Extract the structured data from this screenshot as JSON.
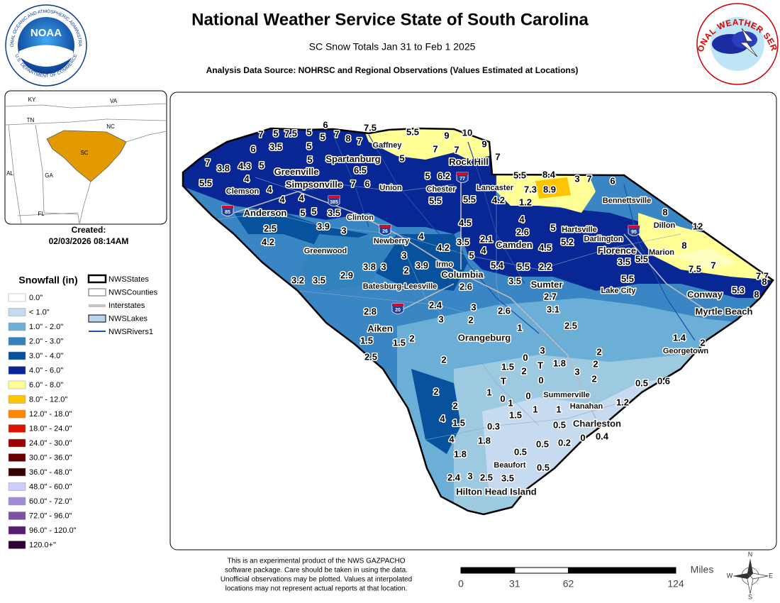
{
  "header": {
    "title": "National Weather Service State of South Carolina",
    "subtitle": "SC Snow Totals Jan 31 to Feb 1 2025",
    "source": "Analysis Data Source: NOHRSC and Regional Observations (Values Estimated at Locations)"
  },
  "logos": {
    "noaa": {
      "name": "NOAA",
      "ring_top": "NATIONAL OCEANIC AND ATMOSPHERIC ADMINISTRATION",
      "ring_bottom": "U.S. DEPARTMENT OF COMMERCE"
    },
    "nws": {
      "ring": "NATIONAL WEATHER SERVICE"
    }
  },
  "inset": {
    "labels": [
      "KY",
      "VA",
      "TN",
      "NC",
      "SC",
      "AL",
      "GA",
      "FL"
    ]
  },
  "created": {
    "label": "Created:",
    "date": "02/03/2026 08:14AM"
  },
  "legend": {
    "title": "Snowfall (in)",
    "items": [
      {
        "label": "0.0\"",
        "color": "#ffffff"
      },
      {
        "label": "< 1.0\"",
        "color": "#c6dbef"
      },
      {
        "label": "1.0\" - 2.0\"",
        "color": "#6baed6"
      },
      {
        "label": "2.0\" - 3.0\"",
        "color": "#3182bd"
      },
      {
        "label": "3.0\" - 4.0\"",
        "color": "#08519c"
      },
      {
        "label": "4.0\" - 6.0\"",
        "color": "#082694"
      },
      {
        "label": "6.0\" - 8.0\"",
        "color": "#ffff96"
      },
      {
        "label": "8.0\" - 12.0\"",
        "color": "#ffc400"
      },
      {
        "label": "12.0\" - 18.0\"",
        "color": "#ff8700"
      },
      {
        "label": "18.0\" - 24.0\"",
        "color": "#db1400"
      },
      {
        "label": "24.0\" - 30.0\"",
        "color": "#9e0000"
      },
      {
        "label": "30.0\" - 36.0\"",
        "color": "#690000"
      },
      {
        "label": "36.0\" - 48.0\"",
        "color": "#360000"
      },
      {
        "label": "48.0\" - 60.0\"",
        "color": "#ccccff"
      },
      {
        "label": "60.0\" - 72.0\"",
        "color": "#9f8cd8"
      },
      {
        "label": "72.0\" - 96.0\"",
        "color": "#7c52a5"
      },
      {
        "label": "96.0\" - 120.0\"",
        "color": "#561c72"
      },
      {
        "label": "120.0+\"",
        "color": "#2e0033"
      }
    ]
  },
  "layers": [
    "NWSStates",
    "NWSCounties",
    "Interstates",
    "NWSLakes",
    "NWSRivers1"
  ],
  "map": {
    "cities": [
      "Gaffney",
      "Spartanburg",
      "Rock Hill",
      "Greenville",
      "Simpsonville",
      "Union",
      "Chester",
      "Lancaster",
      "Bennettsville",
      "Clemson",
      "Anderson",
      "Clinton",
      "Hartsville",
      "Dillon",
      "Darlington",
      "Newberry",
      "Camden",
      "Florence",
      "Marion",
      "Greenwood",
      "Irmo",
      "Columbia",
      "Batesburg-Leesville",
      "Sumter",
      "Lake City",
      "Conway",
      "Myrtle Beach",
      "Aiken",
      "Orangeburg",
      "Georgetown",
      "Summerville",
      "Hanahan",
      "Charleston",
      "Beaufort",
      "Hilton Head Island"
    ],
    "interstates": [
      "85",
      "385",
      "26",
      "77",
      "95",
      "20"
    ],
    "snow_values": [
      7,
      5,
      7.5,
      5,
      6,
      5,
      7,
      8,
      7,
      7.5,
      6,
      3.5,
      5,
      5,
      5.5,
      9,
      10,
      9,
      7,
      7,
      7,
      7,
      3.8,
      4.3,
      5,
      5,
      6.5,
      5.5,
      4,
      4,
      7,
      6,
      5,
      6.2,
      5.5,
      8.4,
      3,
      7,
      6,
      7.3,
      8.9,
      4,
      4,
      5.5,
      5.5,
      4.2,
      1.2,
      5,
      5,
      3.5,
      8,
      4,
      12,
      2.5,
      3.9,
      3,
      4.5,
      5,
      4.2,
      2.6,
      4,
      2.1,
      3.5,
      5.2,
      8,
      4.2,
      5,
      4,
      4.5,
      3,
      3.8,
      3,
      3.9,
      2,
      5.4,
      5.5,
      2.2,
      3.5,
      5.5,
      7.5,
      7,
      7.7,
      8,
      5.3,
      8,
      3.2,
      3.5,
      2.9,
      3.5,
      5.5,
      2.6,
      2.7,
      2.8,
      2.4,
      3,
      3,
      2,
      2.6,
      3.1,
      2.5,
      1,
      1.5,
      1.5,
      2,
      1.4,
      2,
      2.5,
      3,
      0,
      2,
      2,
      1.5,
      2,
      "T",
      1.8,
      3,
      2,
      2,
      "T",
      0,
      0.5,
      0.6,
      2,
      1,
      0,
      0,
      1,
      2,
      1,
      1.2,
      1,
      1.5,
      4,
      1.5,
      0.3,
      0.5,
      4,
      1.8,
      0.5,
      0.2,
      0,
      0.4,
      1.8,
      0.5,
      0.5,
      2.4,
      3,
      2.5,
      3.5
    ]
  },
  "disclaimer": [
    "This is an experimental product of the NWS GAZPACHO",
    "software package. Care should be taken in using the data.",
    "Unofficial observations may be plotted. Values at interpolated",
    "locations may not represent actual reports at that location."
  ],
  "scale": {
    "unit": "Miles",
    "ticks": [
      0,
      31,
      62,
      124
    ]
  },
  "compass": [
    "N",
    "E",
    "S",
    "W"
  ]
}
